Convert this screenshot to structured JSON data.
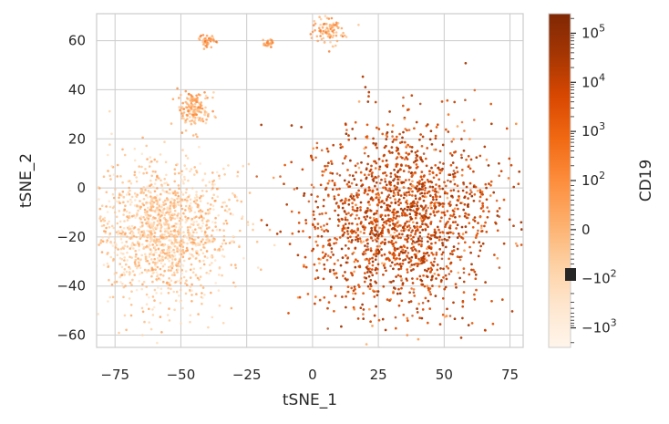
{
  "chart_data": {
    "type": "scatter",
    "title": "",
    "xlabel": "tSNE_1",
    "ylabel": "tSNE_2",
    "xlim": [
      -82,
      80
    ],
    "ylim": [
      -65,
      71
    ],
    "x_ticks": [
      -75,
      -50,
      -25,
      0,
      25,
      50,
      75
    ],
    "x_tick_labels": [
      "−75",
      "−50",
      "−25",
      "0",
      "25",
      "50",
      "75"
    ],
    "y_ticks": [
      -60,
      -40,
      -20,
      0,
      20,
      40,
      60
    ],
    "y_tick_labels": [
      "−60",
      "−40",
      "−20",
      "0",
      "20",
      "40",
      "60"
    ],
    "grid": true,
    "colorbar": {
      "label": "CD19",
      "scale": "symlog",
      "colormap": "Oranges",
      "cmap_stops": [
        "#fff5eb",
        "#fee6ce",
        "#fdd0a2",
        "#fdae6b",
        "#fd8d3c",
        "#f16913",
        "#d94801",
        "#a63603",
        "#7f2704"
      ],
      "ticks": [
        {
          "value": 100000,
          "base": "10",
          "exp": "5",
          "sign": ""
        },
        {
          "value": 10000,
          "base": "10",
          "exp": "4",
          "sign": ""
        },
        {
          "value": 1000,
          "base": "10",
          "exp": "3",
          "sign": ""
        },
        {
          "value": 100,
          "base": "10",
          "exp": "2",
          "sign": ""
        },
        {
          "value": 0,
          "base": "0",
          "exp": "",
          "sign": ""
        },
        {
          "value": -100,
          "base": "−10",
          "exp": "2",
          "sign": ""
        },
        {
          "value": -1000,
          "base": "−10",
          "exp": "3",
          "sign": ""
        }
      ]
    },
    "clusters": [
      {
        "cx": -57,
        "cy": -18,
        "sx": 13,
        "sy": 14,
        "level": 0.3,
        "kind": "low-cd19"
      },
      {
        "cx": -45,
        "cy": 32,
        "sx": 3,
        "sy": 4,
        "level": 0.4,
        "kind": "low-cd19"
      },
      {
        "cx": -40,
        "cy": 60,
        "sx": 1.5,
        "sy": 1.2,
        "level": 0.45,
        "kind": "low-cd19"
      },
      {
        "cx": -17,
        "cy": 59,
        "sx": 1,
        "sy": 1,
        "level": 0.45,
        "kind": "low-cd19"
      },
      {
        "cx": 6,
        "cy": 64,
        "sx": 3,
        "sy": 3,
        "level": 0.45,
        "kind": "low-cd19"
      },
      {
        "cx": 33,
        "cy": -12,
        "sx": 18,
        "sy": 19,
        "level": 0.8,
        "kind": "high-cd19"
      }
    ]
  }
}
